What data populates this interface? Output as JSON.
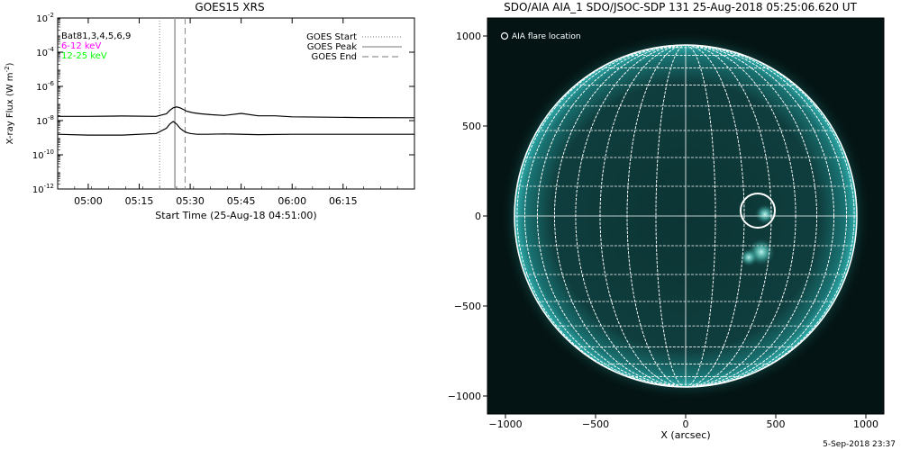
{
  "footer": {
    "timestamp": "5-Sep-2018 23:37"
  },
  "chart_data": [
    {
      "type": "line",
      "title": "GOES15 XRS",
      "xlabel": "Start Time (25-Aug-18 04:51:00)",
      "ylabel_main": "X-ray Flux (W m",
      "ylabel_sup": "-2",
      "ylabel_close": ")",
      "yscale": "log",
      "ylim_exp": [
        -12,
        -2
      ],
      "ytick_exps": [
        -12,
        -10,
        -8,
        -6,
        -4,
        -2
      ],
      "xlim_min": [
        -9,
        96
      ],
      "xticks": [
        {
          "label": "05:00",
          "min": 0
        },
        {
          "label": "05:15",
          "min": 15
        },
        {
          "label": "05:30",
          "min": 30
        },
        {
          "label": "05:45",
          "min": 45
        },
        {
          "label": "06:00",
          "min": 60
        },
        {
          "label": "06:15",
          "min": 75
        }
      ],
      "legend_left": [
        {
          "label": "Bat81,3,4,5,6,9",
          "color": "#000000"
        },
        {
          "label": "6-12 keV",
          "color": "#ff00ff"
        },
        {
          "label": "12-25 keV",
          "color": "#00ff00"
        }
      ],
      "legend_right": [
        {
          "label": "GOES Start",
          "style": "dotted"
        },
        {
          "label": "GOES Peak",
          "style": "solid"
        },
        {
          "label": "GOES End",
          "style": "dashed"
        }
      ],
      "events": {
        "start_min": 21,
        "peak_min": 25.5,
        "end_min": 28.5
      },
      "series": [
        {
          "color": "#000000",
          "x": [
            -9,
            0,
            10,
            20,
            23,
            24,
            25,
            26,
            27,
            28,
            29,
            30,
            31,
            33,
            36,
            40,
            45,
            50,
            55,
            60,
            70,
            80,
            96
          ],
          "y_exp": [
            -7.75,
            -7.75,
            -7.73,
            -7.75,
            -7.6,
            -7.4,
            -7.25,
            -7.2,
            -7.25,
            -7.35,
            -7.45,
            -7.5,
            -7.55,
            -7.6,
            -7.65,
            -7.7,
            -7.58,
            -7.72,
            -7.72,
            -7.78,
            -7.8,
            -7.82,
            -7.83
          ]
        },
        {
          "color": "#000000",
          "x": [
            -9,
            0,
            10,
            20,
            23,
            24,
            25,
            26,
            27,
            28,
            29,
            30,
            32,
            35,
            40,
            50,
            60,
            70,
            80,
            96
          ],
          "y_exp": [
            -8.8,
            -8.85,
            -8.85,
            -8.75,
            -8.45,
            -8.2,
            -8.05,
            -8.2,
            -8.45,
            -8.6,
            -8.7,
            -8.75,
            -8.8,
            -8.8,
            -8.78,
            -8.82,
            -8.8,
            -8.8,
            -8.8,
            -8.8
          ]
        }
      ]
    },
    {
      "type": "heatmap",
      "title": "SDO/AIA AIA_1 SDO/JSOC-SDP 131 25-Aug-2018 05:25:06.620 UT",
      "xlabel": "X (arcsec)",
      "ylabel": "",
      "xlim": [
        -1100,
        1100
      ],
      "ylim": [
        -1100,
        1100
      ],
      "xticks": [
        -1000,
        -500,
        0,
        500,
        1000
      ],
      "yticks": [
        -1000,
        -500,
        0,
        500,
        1000
      ],
      "solar_radius_arcsec": 950,
      "annotation": "AIA flare location",
      "flare": {
        "x": 400,
        "y": 30,
        "r": 95
      },
      "bright_regions": [
        {
          "x": 440,
          "y": 10,
          "r": 55
        },
        {
          "x": 420,
          "y": -200,
          "r": 75
        },
        {
          "x": 350,
          "y": -230,
          "r": 50
        }
      ],
      "colors": {
        "background": "#041414",
        "disk": "#0e3a3a",
        "limb": "#2aa6a6",
        "bright": "#8ef4ec"
      }
    }
  ]
}
